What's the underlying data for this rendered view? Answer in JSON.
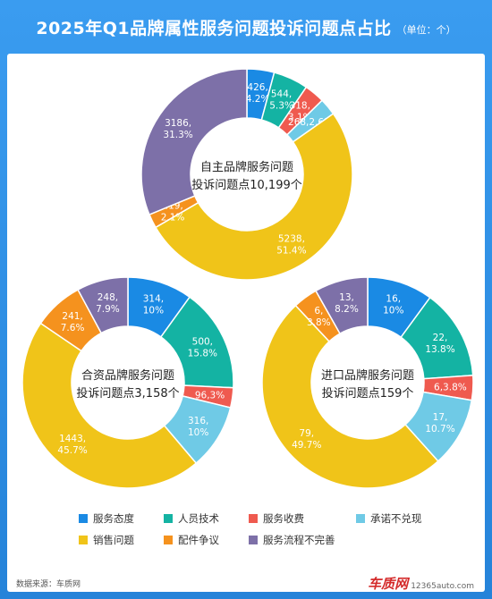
{
  "header": {
    "title": "2025年Q1品牌属性服务问题投诉问题点占比",
    "unit": "（单位：个）"
  },
  "legend": {
    "items": [
      {
        "label": "服务态度",
        "color": "#1a8ae4"
      },
      {
        "label": "人员技术",
        "color": "#14b3a3"
      },
      {
        "label": "服务收费",
        "color": "#ef5a4f"
      },
      {
        "label": "承诺不兑现",
        "color": "#6fcae6"
      },
      {
        "label": "销售问题",
        "color": "#f0c419"
      },
      {
        "label": "配件争议",
        "color": "#f5921e"
      },
      {
        "label": "服务流程不完善",
        "color": "#7d70a8"
      }
    ]
  },
  "footer": {
    "source": "数据来源：车质网",
    "logo": "车质网",
    "logo_url": "12365auto.com"
  },
  "chart_data": [
    {
      "type": "pie",
      "center_text": [
        "自主品牌服务问题",
        "投诉问题点10,199个"
      ],
      "categories": [
        "服务态度",
        "人员技术",
        "服务收费",
        "承诺不兑现",
        "销售问题",
        "配件争议",
        "服务流程不完善"
      ],
      "values": [
        426,
        544,
        318,
        268,
        5238,
        219,
        3186
      ],
      "percents": [
        "4.2%",
        "5.3%",
        "3.1%",
        "2.6%",
        "51.4%",
        "2.1%",
        "31.3%"
      ],
      "labels": [
        "426,|4.2%",
        "544,|5.3%",
        "318,|3.1%",
        "268,2.6%",
        "5238,|51.4%",
        "219,|2.1%",
        "3186,|31.3%"
      ]
    },
    {
      "type": "pie",
      "center_text": [
        "合资品牌服务问题",
        "投诉问题点3,158个"
      ],
      "categories": [
        "服务态度",
        "人员技术",
        "服务收费",
        "承诺不兑现",
        "销售问题",
        "配件争议",
        "服务流程不完善"
      ],
      "values": [
        314,
        500,
        96,
        316,
        1443,
        241,
        248
      ],
      "percents": [
        "10%",
        "15.8%",
        "3%",
        "10%",
        "45.7%",
        "7.6%",
        "7.9%"
      ],
      "labels": [
        "314,|10%",
        "500,|15.8%",
        "96,3%",
        "316,|10%",
        "1443,|45.7%",
        "241,|7.6%",
        "248,|7.9%"
      ]
    },
    {
      "type": "pie",
      "center_text": [
        "进口品牌服务问题",
        "投诉问题点159个"
      ],
      "categories": [
        "服务态度",
        "人员技术",
        "服务收费",
        "承诺不兑现",
        "销售问题",
        "配件争议",
        "服务流程不完善"
      ],
      "values": [
        16,
        22,
        6,
        17,
        79,
        6,
        13
      ],
      "percents": [
        "10%",
        "13.8%",
        "3.8%",
        "10.7%",
        "49.7%",
        "3.8%",
        "8.2%"
      ],
      "labels": [
        "16,|10%",
        "22,|13.8%",
        "6,3.8%",
        "17,|10.7%",
        "79,|49.7%",
        "6,|3.8%",
        "13,|8.2%"
      ]
    }
  ]
}
